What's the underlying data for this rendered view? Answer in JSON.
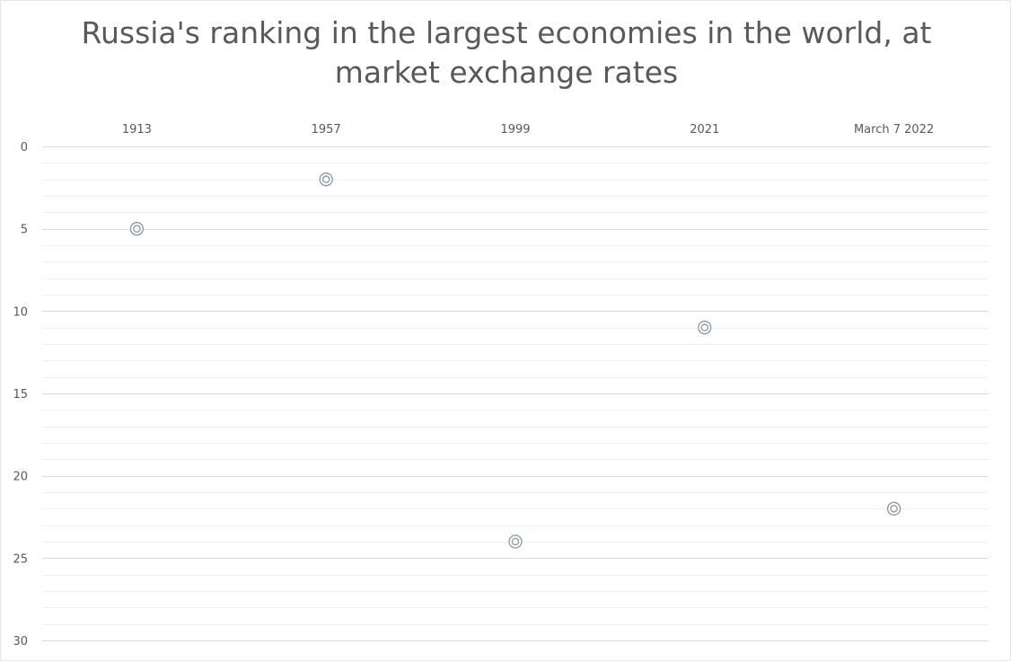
{
  "chart_data": {
    "type": "scatter",
    "title": "Russia's ranking in the largest economies in the world, at market exchange rates",
    "title_lines": [
      "Russia's ranking in the largest economies in the world, at",
      "market exchange rates"
    ],
    "categories": [
      "1913",
      "1957",
      "1999",
      "2021",
      "March 7 2022"
    ],
    "values": [
      5,
      2,
      24,
      11,
      22
    ],
    "xlabel": "",
    "ylabel": "",
    "ylim": [
      0,
      30
    ],
    "y_reversed": true,
    "y_ticks": [
      0,
      5,
      10,
      15,
      20,
      25,
      30
    ],
    "x_axis_position": "top",
    "grid": true,
    "legend": "none",
    "marker": "double-circle",
    "colors": {
      "marker": "#8497b0",
      "text": "#595959",
      "grid_major": "#d9d9d9",
      "grid_minor": "#f0f0f0"
    }
  }
}
